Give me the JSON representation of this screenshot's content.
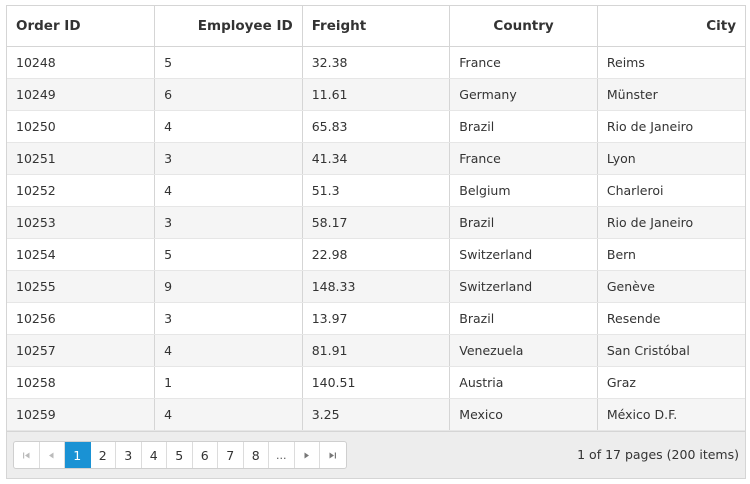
{
  "columns": [
    "Order ID",
    "Employee ID",
    "Freight",
    "Country",
    "City"
  ],
  "rows": [
    [
      "10248",
      "5",
      "32.38",
      "France",
      "Reims"
    ],
    [
      "10249",
      "6",
      "11.61",
      "Germany",
      "Münster"
    ],
    [
      "10250",
      "4",
      "65.83",
      "Brazil",
      "Rio de Janeiro"
    ],
    [
      "10251",
      "3",
      "41.34",
      "France",
      "Lyon"
    ],
    [
      "10252",
      "4",
      "51.3",
      "Belgium",
      "Charleroi"
    ],
    [
      "10253",
      "3",
      "58.17",
      "Brazil",
      "Rio de Janeiro"
    ],
    [
      "10254",
      "5",
      "22.98",
      "Switzerland",
      "Bern"
    ],
    [
      "10255",
      "9",
      "148.33",
      "Switzerland",
      "Genève"
    ],
    [
      "10256",
      "3",
      "13.97",
      "Brazil",
      "Resende"
    ],
    [
      "10257",
      "4",
      "81.91",
      "Venezuela",
      "San Cristóbal"
    ],
    [
      "10258",
      "1",
      "140.51",
      "Austria",
      "Graz"
    ],
    [
      "10259",
      "4",
      "3.25",
      "Mexico",
      "México D.F."
    ]
  ],
  "pager": {
    "first_icon": "first-page-icon",
    "prev_icon": "previous-page-icon",
    "next_icon": "next-page-icon",
    "last_icon": "last-page-icon",
    "pages": [
      "1",
      "2",
      "3",
      "4",
      "5",
      "6",
      "7",
      "8"
    ],
    "current_page": "1",
    "ellipsis": "...",
    "info": "1 of 17 pages (200 items)"
  },
  "colors": {
    "current_page": "#1a92d4",
    "alt_row": "#f5f5f5",
    "border": "#d5d5d5"
  }
}
